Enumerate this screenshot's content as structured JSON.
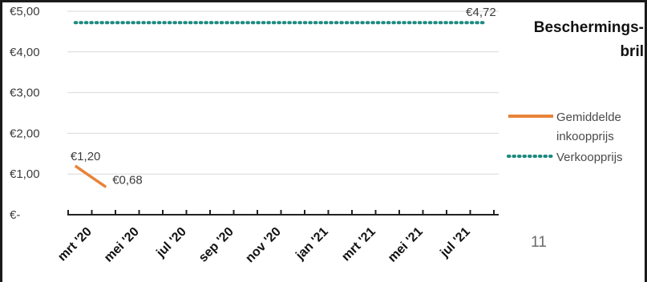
{
  "chart_data": {
    "type": "line",
    "title_lines": [
      "Beschermings-",
      "bril"
    ],
    "categories": [
      "mrt '20",
      "mei '20",
      "jul '20",
      "sep '20",
      "nov '20",
      "jan '21",
      "mrt '21",
      "mei '21",
      "jul '21"
    ],
    "ylim": [
      0,
      5
    ],
    "yticks": [
      {
        "value": 0,
        "label": "€-"
      },
      {
        "value": 1,
        "label": "€1,00"
      },
      {
        "value": 2,
        "label": "€2,00"
      },
      {
        "value": 3,
        "label": "€3,00"
      },
      {
        "value": 4,
        "label": "€4,00"
      },
      {
        "value": 5,
        "label": "€5,00"
      }
    ],
    "grid": true,
    "legend_position": "right",
    "series": [
      {
        "name_lines": [
          "Gemiddelde",
          "inkoopprijs"
        ],
        "style": "solid",
        "color": "#E8833A",
        "points": [
          {
            "month_index": 0.3,
            "value": 1.2,
            "label": "€1,20"
          },
          {
            "month_index": 1.6,
            "value": 0.68,
            "label": "€0,68"
          }
        ]
      },
      {
        "name_lines": [
          "Verkoopprijs"
        ],
        "style": "dotted",
        "color": "#1E8A80",
        "points": [
          {
            "month_index": 0.3,
            "value": 4.72,
            "label": ""
          },
          {
            "month_index": 17.7,
            "value": 4.72,
            "label": "€4,72"
          }
        ]
      }
    ]
  },
  "page_number": "11"
}
